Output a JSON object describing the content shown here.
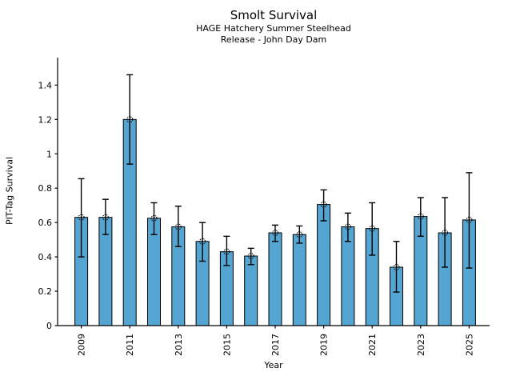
{
  "chart_data": {
    "type": "bar",
    "title": "Smolt Survival",
    "subtitle_line1": "HAGE Hatchery Summer Steelhead",
    "subtitle_line2": "Release - John Day Dam",
    "xlabel": "Year",
    "ylabel": "PIT-Tag Survival",
    "categories": [
      2009,
      2010,
      2011,
      2012,
      2013,
      2014,
      2015,
      2016,
      2017,
      2018,
      2019,
      2020,
      2021,
      2022,
      2023,
      2024,
      2025
    ],
    "values": [
      0.63,
      0.63,
      1.2,
      0.625,
      0.575,
      0.49,
      0.43,
      0.405,
      0.54,
      0.53,
      0.705,
      0.575,
      0.565,
      0.34,
      0.635,
      0.54,
      0.615
    ],
    "error_low": [
      0.4,
      0.53,
      0.94,
      0.53,
      0.46,
      0.375,
      0.35,
      0.355,
      0.49,
      0.48,
      0.61,
      0.49,
      0.41,
      0.195,
      0.52,
      0.34,
      0.335
    ],
    "error_high": [
      0.855,
      0.735,
      1.46,
      0.715,
      0.695,
      0.6,
      0.52,
      0.45,
      0.585,
      0.58,
      0.79,
      0.655,
      0.715,
      0.49,
      0.745,
      0.745,
      0.89
    ],
    "x_tick_labels": [
      "2009",
      "2011",
      "2013",
      "2015",
      "2017",
      "2019",
      "2021",
      "2023",
      "2025"
    ],
    "x_tick_years": [
      2009,
      2011,
      2013,
      2015,
      2017,
      2019,
      2021,
      2023,
      2025
    ],
    "y_ticks": [
      0,
      0.2,
      0.4,
      0.6,
      0.8,
      1.0,
      1.2,
      1.4
    ],
    "y_tick_labels": [
      "0",
      "0.2",
      "0.4",
      "0.6",
      "0.8",
      "1",
      "1.2",
      "1.4"
    ],
    "ylim": [
      0,
      1.56
    ],
    "grid": false,
    "legend": "none",
    "bar_color": "#55a5d2",
    "bar_edge_color": "#000000",
    "error_bar_color": "#000000",
    "marker": "open-circle",
    "axis_color": "#000000"
  }
}
